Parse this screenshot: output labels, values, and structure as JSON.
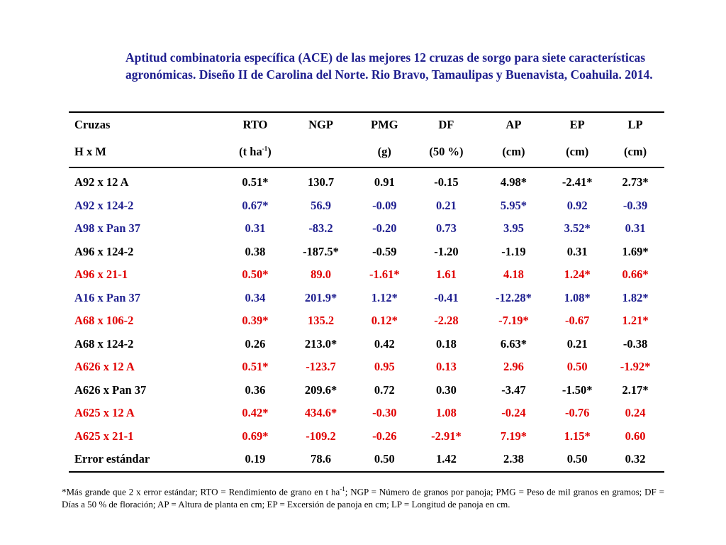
{
  "title": "Aptitud combinatoria específica (ACE) de las mejores 12 cruzas de sorgo para siete características agronómicas. Diseño II de Carolina del Norte. Rio Bravo, Tamaulipas y Buenavista, Coahuila. 2014.",
  "colors": {
    "black": "#000000",
    "blue": "#1f1f8f",
    "red": "#e00000"
  },
  "table": {
    "headers_row1": [
      "Cruzas",
      "RTO",
      "NGP",
      "PMG",
      "DF",
      "AP",
      "EP",
      "LP"
    ],
    "headers_row2": [
      "H x M",
      "(t ha",
      "",
      "(g)",
      "(50 %)",
      "(cm)",
      "(cm)",
      "(cm)"
    ],
    "rto_unit_sup": "-1",
    "rto_unit_close": ")",
    "rows": [
      {
        "color": "black",
        "cells": [
          "A92 x 12 A",
          "0.51*",
          "130.7",
          "0.91",
          "-0.15",
          "4.98*",
          "-2.41*",
          "2.73*"
        ]
      },
      {
        "color": "blue",
        "cells": [
          "A92 x 124-2",
          "0.67*",
          "56.9",
          "-0.09",
          "0.21",
          "5.95*",
          "0.92",
          "-0.39"
        ]
      },
      {
        "color": "blue",
        "cells": [
          "A98 x Pan 37",
          "0.31",
          "-83.2",
          "-0.20",
          "0.73",
          "3.95",
          "3.52*",
          "0.31"
        ]
      },
      {
        "color": "black",
        "cells": [
          "A96 x 124-2",
          "0.38",
          "-187.5*",
          "-0.59",
          "-1.20",
          "-1.19",
          "0.31",
          "1.69*"
        ]
      },
      {
        "color": "red",
        "cells": [
          "A96 x 21-1",
          "0.50*",
          "89.0",
          "-1.61*",
          "1.61",
          "4.18",
          "1.24*",
          "0.66*"
        ]
      },
      {
        "color": "blue",
        "cells": [
          "A16 x Pan 37",
          "0.34",
          "201.9*",
          "1.12*",
          "-0.41",
          "-12.28*",
          "1.08*",
          "1.82*"
        ]
      },
      {
        "color": "red",
        "cells": [
          "A68 x 106-2",
          "0.39*",
          "135.2",
          "0.12*",
          "-2.28",
          "-7.19*",
          "-0.67",
          "1.21*"
        ]
      },
      {
        "color": "black",
        "cells": [
          "A68 x 124-2",
          "0.26",
          "213.0*",
          "0.42",
          "0.18",
          "6.63*",
          "0.21",
          "-0.38"
        ]
      },
      {
        "color": "red",
        "cells": [
          "A626 x 12 A",
          "0.51*",
          "-123.7",
          "0.95",
          "0.13",
          "2.96",
          "0.50",
          "-1.92*"
        ]
      },
      {
        "color": "black",
        "cells": [
          "A626 x Pan 37",
          "0.36",
          "209.6*",
          "0.72",
          "0.30",
          "-3.47",
          "-1.50*",
          "2.17*"
        ]
      },
      {
        "color": "red",
        "cells": [
          "A625 x 12 A",
          "0.42*",
          "434.6*",
          "-0.30",
          "1.08",
          "-0.24",
          "-0.76",
          "0.24"
        ]
      },
      {
        "color": "red",
        "cells": [
          "A625 x 21-1",
          "0.69*",
          "-109.2",
          "-0.26",
          "-2.91*",
          "7.19*",
          "1.15*",
          "0.60"
        ]
      },
      {
        "color": "black",
        "cells": [
          "Error estándar",
          "0.19",
          "78.6",
          "0.50",
          "1.42",
          "2.38",
          "0.50",
          "0.32"
        ]
      }
    ]
  },
  "footnote": {
    "part1": "*Más grande que 2 x error estándar; RTO = Rendimiento de grano en t ha",
    "sup": "-1",
    "part2": "; NGP = Número de granos por panoja; PMG = Peso de mil granos en gramos; DF = Días a 50 % de floración; AP = Altura de planta en cm; EP = Excersión de panoja en cm; LP = Longitud de panoja en cm."
  }
}
